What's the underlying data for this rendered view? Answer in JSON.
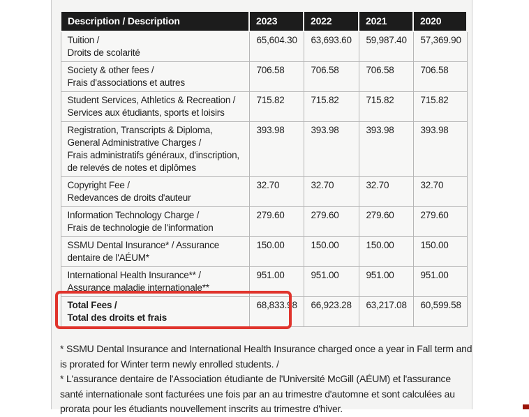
{
  "table": {
    "columns": [
      "Description / Description",
      "2023",
      "2022",
      "2021",
      "2020"
    ],
    "rows": [
      {
        "desc_lines": [
          "Tuition /",
          "Droits de scolarité"
        ],
        "values": [
          "65,604.30",
          "63,693.60",
          "59,987.40",
          "57,369.90"
        ]
      },
      {
        "desc_lines": [
          "Society & other fees /",
          "Frais d'associations et autres"
        ],
        "values": [
          "706.58",
          "706.58",
          "706.58",
          "706.58"
        ]
      },
      {
        "desc_lines": [
          "Student Services, Athletics & Recreation /",
          "Services aux étudiants, sports et loisirs"
        ],
        "values": [
          "715.82",
          "715.82",
          "715.82",
          "715.82"
        ]
      },
      {
        "desc_lines": [
          "Registration, Transcripts & Diploma, General Administrative Charges /",
          "Frais administratifs généraux, d'inscription, de relevés de notes et diplômes"
        ],
        "values": [
          "393.98",
          "393.98",
          "393.98",
          "393.98"
        ]
      },
      {
        "desc_lines": [
          "Copyright Fee /",
          "Redevances de droits d'auteur"
        ],
        "values": [
          "32.70",
          "32.70",
          "32.70",
          "32.70"
        ]
      },
      {
        "desc_lines": [
          "Information Technology Charge /",
          "Frais de technologie de l'information"
        ],
        "values": [
          "279.60",
          "279.60",
          "279.60",
          "279.60"
        ]
      },
      {
        "desc_lines": [
          "SSMU Dental Insurance* / Assurance dentaire de l'AÉUM*"
        ],
        "values": [
          "150.00",
          "150.00",
          "150.00",
          "150.00"
        ]
      },
      {
        "desc_lines": [
          "International Health Insurance** / Assurance maladie internationale**"
        ],
        "values": [
          "951.00",
          "951.00",
          "951.00",
          "951.00"
        ]
      },
      {
        "desc_lines": [
          "Total Fees /",
          "Total des droits et frais"
        ],
        "values": [
          "68,833.98",
          "66,923.28",
          "63,217.08",
          "60,599.58"
        ],
        "total": true
      }
    ]
  },
  "footnotes": [
    "* SSMU Dental Insurance and International Health Insurance charged once a year in Fall term and is prorated for Winter term newly enrolled students. /",
    "* L'assurance dentaire de l'Association étudiante de l'Université McGill (AÉUM) et l'assurance santé internationale sont facturées une fois par an au trimestre d'automne et sont calculées au prorata pour les étudiants nouvellement inscrits au trimestre d'hiver."
  ],
  "annotation": {
    "box_color": "#e0342c",
    "corner_color": "#9c1408"
  }
}
